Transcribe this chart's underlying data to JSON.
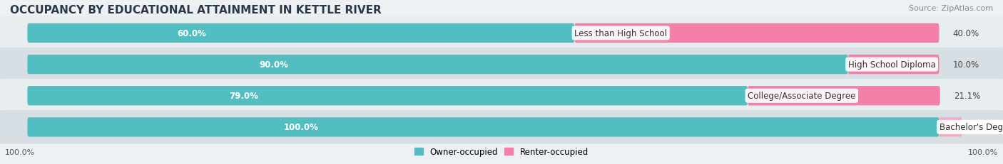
{
  "title": "OCCUPANCY BY EDUCATIONAL ATTAINMENT IN KETTLE RIVER",
  "source": "Source: ZipAtlas.com",
  "categories": [
    "Less than High School",
    "High School Diploma",
    "College/Associate Degree",
    "Bachelor's Degree or higher"
  ],
  "owner_pct": [
    60.0,
    90.0,
    79.0,
    100.0
  ],
  "renter_pct": [
    40.0,
    10.0,
    21.1,
    0.0
  ],
  "owner_color": "#52bec2",
  "renter_color": "#f47fa8",
  "renter_color_faded": "#f7aac5",
  "bg_colors": [
    "#e8edf0",
    "#d8dfe4"
  ],
  "title_color": "#2a3a4a",
  "title_fontsize": 11,
  "source_fontsize": 8,
  "label_fontsize": 8.5,
  "value_fontsize": 8.5,
  "tick_fontsize": 8,
  "legend_fontsize": 8.5,
  "left_axis_label": "100.0%",
  "right_axis_label": "100.0%"
}
